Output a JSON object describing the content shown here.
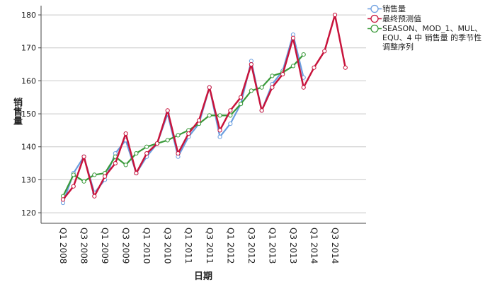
{
  "chart_data": {
    "type": "line",
    "y_label": "销售量",
    "x_label": "日期",
    "categories": [
      "Q1 2008",
      null,
      "Q3 2008",
      null,
      "Q1 2009",
      null,
      "Q3 2009",
      null,
      "Q1 2010",
      null,
      "Q3 2010",
      null,
      "Q1 2011",
      null,
      "Q3 2011",
      null,
      "Q1 2012",
      null,
      "Q3 2012",
      null,
      "Q1 2013",
      null,
      "Q3 2013",
      null,
      "Q1 2014",
      null,
      "Q3 2014",
      null
    ],
    "series": [
      {
        "name": "销售量",
        "color": "#6a9ee0",
        "values": [
          123,
          132,
          137,
          126,
          130,
          138,
          142,
          132,
          137,
          141,
          150,
          137,
          143,
          147,
          158,
          143,
          147,
          153,
          166,
          151,
          159,
          163,
          174,
          161,
          null,
          null,
          null,
          null
        ]
      },
      {
        "name": "最终预测值",
        "color": "#c8143c",
        "values": [
          124,
          128,
          137,
          125,
          131,
          135,
          144,
          132,
          138,
          141,
          151,
          138,
          144,
          148,
          158,
          145,
          151,
          155,
          165,
          151,
          158,
          162,
          173,
          158,
          164,
          169,
          180,
          164
        ]
      },
      {
        "name": "SEASON、MOD_1、MUL、EQU、4 中 销售量 的季节性调整序列",
        "color": "#3a9a3a",
        "values": [
          125,
          131.5,
          129.5,
          131.5,
          132,
          137,
          134.5,
          138,
          140,
          141,
          142,
          143.5,
          145,
          147,
          149.5,
          149.5,
          149.5,
          153,
          157,
          158,
          161.5,
          162.5,
          164.5,
          168,
          null,
          null,
          null,
          null
        ]
      }
    ],
    "ylim": [
      116.8,
      182.8
    ],
    "yticks": [
      120,
      130,
      140,
      150,
      160,
      170,
      180
    ],
    "grid": true
  }
}
